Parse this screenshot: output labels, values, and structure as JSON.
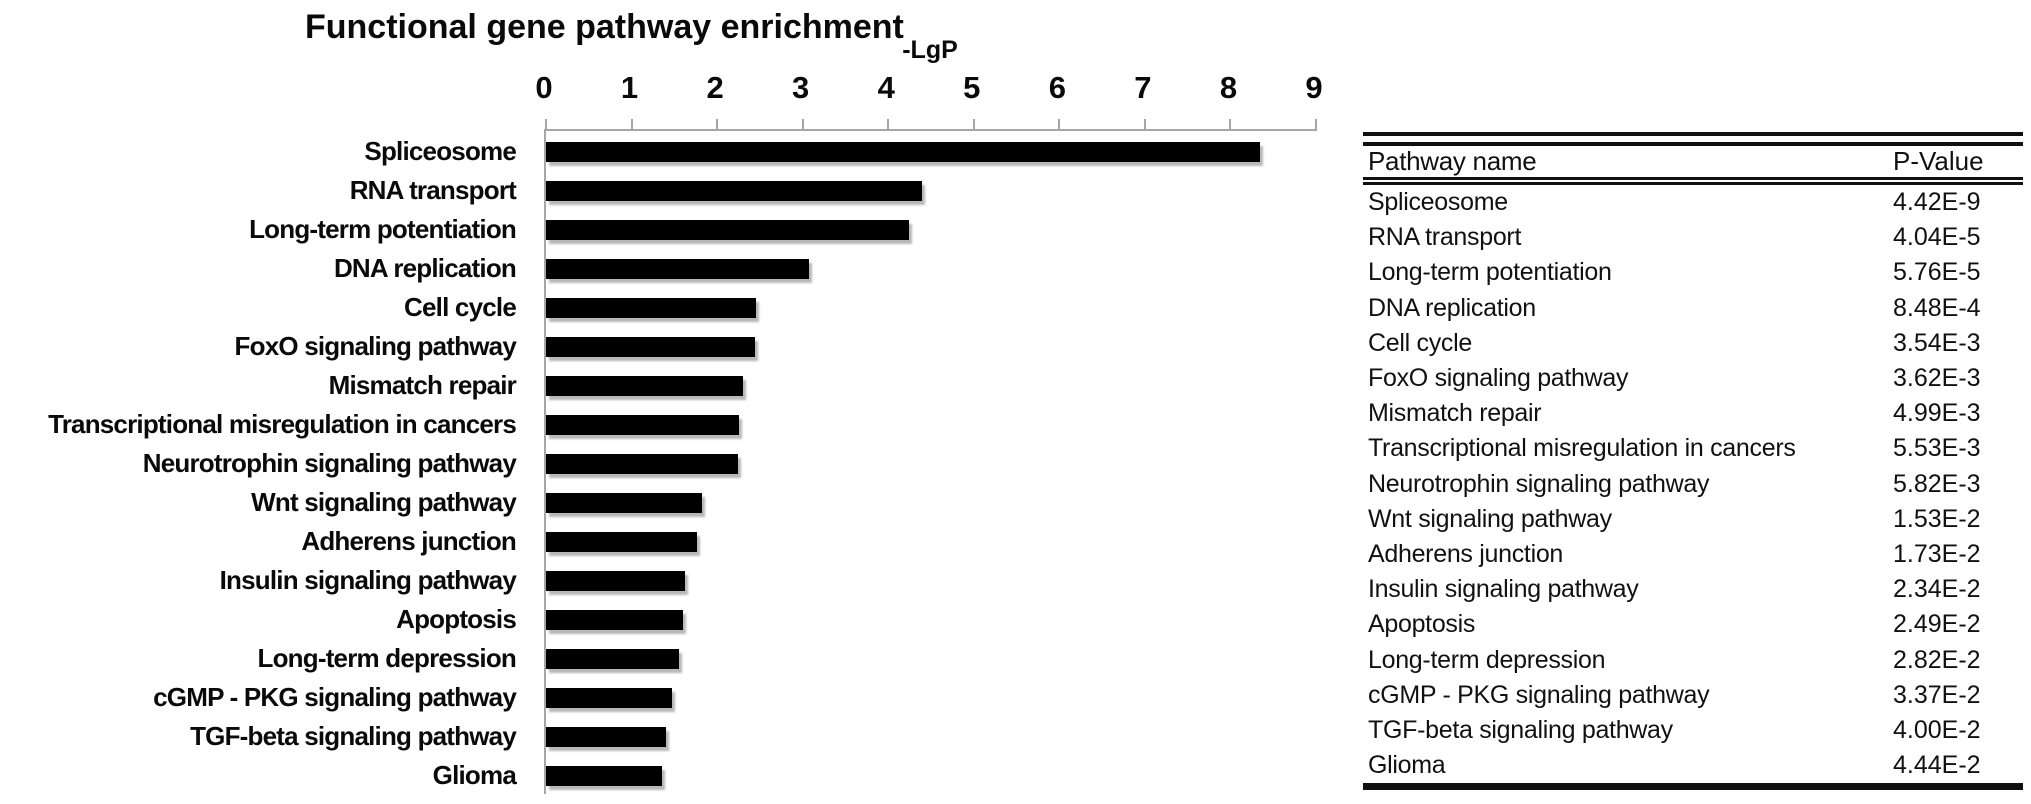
{
  "chart_data": {
    "type": "bar",
    "orientation": "horizontal",
    "title": "Functional gene pathway enrichment",
    "xlabel": "-LgP",
    "xlim": [
      0,
      9
    ],
    "xticks": [
      "0",
      "1",
      "2",
      "3",
      "4",
      "5",
      "6",
      "7",
      "8",
      "9"
    ],
    "grid": false,
    "legend": "none",
    "bar_color": "#000000",
    "axis_color": "#a6a6a6",
    "categories": [
      "Spliceosome",
      "RNA transport",
      "Long-term potentiation",
      "DNA replication",
      "Cell cycle",
      "FoxO signaling pathway",
      "Mismatch repair",
      "Transcriptional misregulation in cancers",
      "Neurotrophin signaling pathway",
      "Wnt signaling pathway",
      "Adherens junction",
      "Insulin signaling pathway",
      "Apoptosis",
      "Long-term depression",
      "cGMP - PKG signaling pathway",
      "TGF-beta signaling pathway",
      "Glioma"
    ],
    "values": [
      8.35,
      4.39,
      4.24,
      3.07,
      2.45,
      2.44,
      2.3,
      2.26,
      2.24,
      1.82,
      1.76,
      1.63,
      1.6,
      1.55,
      1.47,
      1.4,
      1.35
    ]
  },
  "table": {
    "headers": [
      "Pathway name",
      "P-Value"
    ],
    "rows": [
      {
        "pathway": "Spliceosome",
        "p_value": "4.42E-9"
      },
      {
        "pathway": "RNA transport",
        "p_value": "4.04E-5"
      },
      {
        "pathway": "Long-term potentiation",
        "p_value": "5.76E-5"
      },
      {
        "pathway": "DNA replication",
        "p_value": "8.48E-4"
      },
      {
        "pathway": "Cell cycle",
        "p_value": "3.54E-3"
      },
      {
        "pathway": "FoxO signaling pathway",
        "p_value": "3.62E-3"
      },
      {
        "pathway": "Mismatch repair",
        "p_value": "4.99E-3"
      },
      {
        "pathway": "Transcriptional misregulation in cancers",
        "p_value": "5.53E-3"
      },
      {
        "pathway": "Neurotrophin signaling pathway",
        "p_value": "5.82E-3"
      },
      {
        "pathway": "Wnt signaling pathway",
        "p_value": "1.53E-2"
      },
      {
        "pathway": "Adherens junction",
        "p_value": "1.73E-2"
      },
      {
        "pathway": "Insulin signaling pathway",
        "p_value": "2.34E-2"
      },
      {
        "pathway": "Apoptosis",
        "p_value": "2.49E-2"
      },
      {
        "pathway": "Long-term depression",
        "p_value": "2.82E-2"
      },
      {
        "pathway": "cGMP - PKG signaling pathway",
        "p_value": "3.37E-2"
      },
      {
        "pathway": "TGF-beta signaling pathway",
        "p_value": "4.00E-2"
      },
      {
        "pathway": "Glioma",
        "p_value": "4.44E-2"
      }
    ]
  }
}
